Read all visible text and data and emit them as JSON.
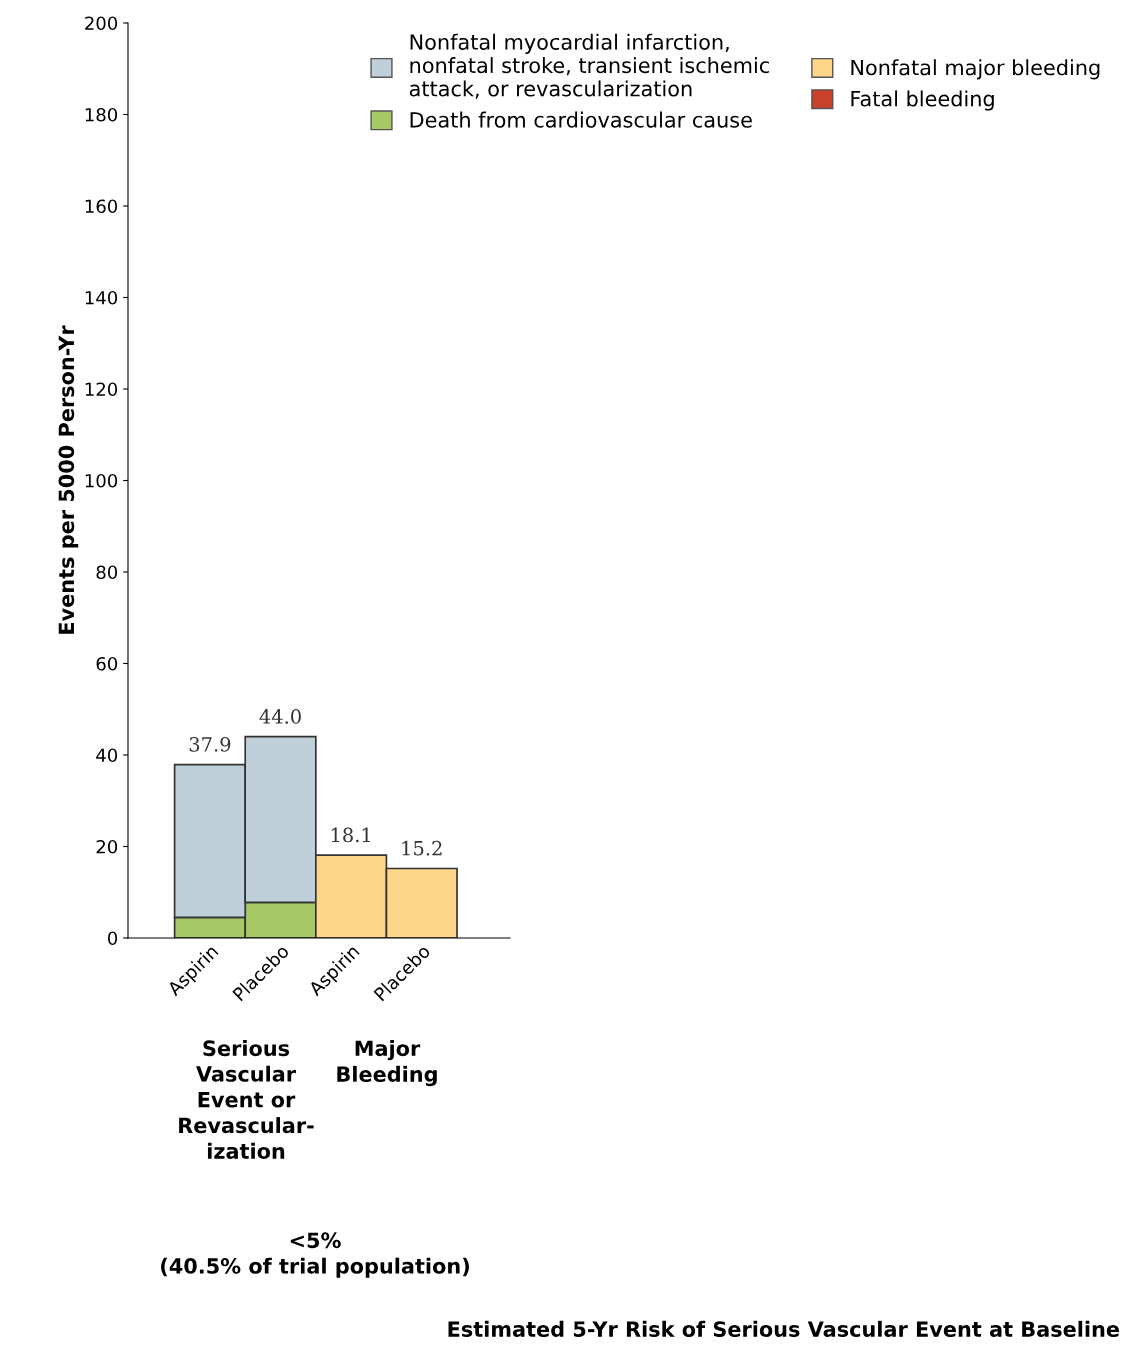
{
  "chart_data": {
    "type": "bar",
    "stacked": true,
    "categories": [
      "Aspirin",
      "Placebo",
      "Aspirin",
      "Placebo"
    ],
    "series": [
      {
        "name": "Death from cardiovascular cause",
        "color": "#a6c965",
        "values": [
          4.5,
          7.8,
          null,
          null
        ]
      },
      {
        "name": "Nonfatal myocardial infarction,\nnonfatal stroke, transient ischemic\nattack, or revascularization",
        "color": "#bfd0db",
        "values": [
          33.4,
          36.2,
          null,
          null
        ]
      },
      {
        "name": "Nonfatal major bleeding",
        "color": "#fdd68a",
        "values": [
          null,
          null,
          18.1,
          15.2
        ]
      },
      {
        "name": "Fatal bleeding",
        "color": "#c8412b",
        "values": [
          null,
          null,
          null,
          null
        ]
      }
    ],
    "totals": [
      "37.9",
      "44.0",
      "18.1",
      "15.2"
    ],
    "ylabel": "Events per 5000 Person-Yr",
    "ylim": [
      0,
      200
    ],
    "yticks": [
      0,
      20,
      40,
      60,
      80,
      100,
      120,
      140,
      160,
      180,
      200
    ],
    "annotations": [
      "Serious\nVascular\nEvent or\nRevascular-\nization",
      "Major\nBleeding",
      "<5%\n(40.5% of trial population)",
      "Estimated 5-Yr Risk of Serious Vascular Event at Baseline"
    ],
    "legend": "top right",
    "grid": false
  }
}
